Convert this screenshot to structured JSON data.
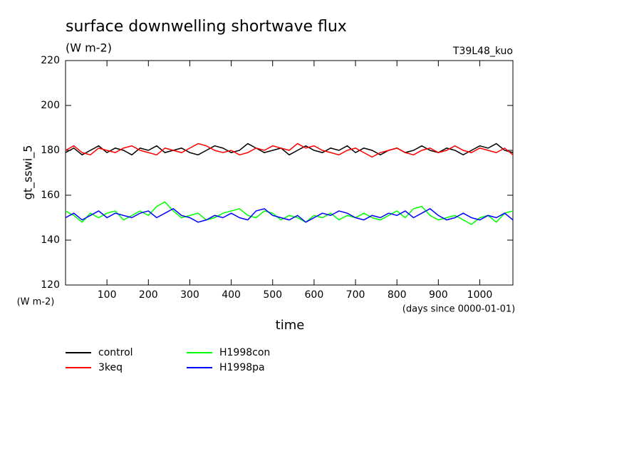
{
  "chart_data": {
    "type": "line",
    "title": "surface downwelling shortwave flux",
    "subtitle": "(W m-2)",
    "annotation": "T39L48_kuo",
    "y_label": "gt_sswi_5",
    "y_unit": "(W m-2)",
    "x_unit": "(days since 0000-01-01)",
    "x_label": "time",
    "x": [
      0,
      20,
      40,
      60,
      80,
      100,
      120,
      140,
      160,
      180,
      200,
      220,
      240,
      260,
      280,
      300,
      320,
      340,
      360,
      380,
      400,
      420,
      440,
      460,
      480,
      500,
      520,
      540,
      560,
      580,
      600,
      620,
      640,
      660,
      680,
      700,
      720,
      740,
      760,
      780,
      800,
      820,
      840,
      860,
      880,
      900,
      920,
      940,
      960,
      980,
      1000,
      1020,
      1040,
      1060,
      1080
    ],
    "xlim": [
      0,
      1080
    ],
    "xticks": [
      100,
      200,
      300,
      400,
      500,
      600,
      700,
      800,
      900,
      1000
    ],
    "ylim": [
      120,
      220
    ],
    "yticks": [
      120,
      140,
      160,
      180,
      200,
      220
    ],
    "series": [
      {
        "name": "control",
        "color": "#000000",
        "values": [
          179,
          181,
          178,
          180,
          182,
          179,
          181,
          180,
          178,
          181,
          180,
          182,
          179,
          180,
          181,
          179,
          178,
          180,
          182,
          181,
          179,
          180,
          183,
          181,
          179,
          180,
          181,
          178,
          180,
          182,
          180,
          179,
          181,
          180,
          182,
          179,
          181,
          180,
          178,
          180,
          181,
          179,
          180,
          182,
          180,
          179,
          181,
          180,
          178,
          180,
          182,
          181,
          183,
          180,
          179
        ]
      },
      {
        "name": "3keq",
        "color": "#ff0000",
        "values": [
          180,
          182,
          179,
          178,
          181,
          180,
          179,
          181,
          182,
          180,
          179,
          178,
          181,
          180,
          179,
          181,
          183,
          182,
          180,
          179,
          180,
          178,
          179,
          181,
          180,
          182,
          181,
          180,
          183,
          181,
          182,
          180,
          179,
          178,
          180,
          181,
          179,
          177,
          179,
          180,
          181,
          179,
          178,
          180,
          181,
          179,
          180,
          182,
          180,
          179,
          181,
          180,
          179,
          181,
          178
        ]
      },
      {
        "name": "H1998con",
        "color": "#00ff00",
        "values": [
          153,
          151,
          148,
          152,
          150,
          152,
          153,
          149,
          151,
          153,
          151,
          155,
          157,
          153,
          150,
          151,
          152,
          149,
          150,
          152,
          153,
          154,
          151,
          150,
          153,
          152,
          149,
          151,
          150,
          148,
          151,
          150,
          152,
          149,
          151,
          150,
          152,
          150,
          149,
          151,
          153,
          150,
          154,
          155,
          151,
          149,
          150,
          151,
          149,
          147,
          150,
          151,
          148,
          152,
          153
        ]
      },
      {
        "name": "H1998pa",
        "color": "#0000ff",
        "values": [
          150,
          152,
          149,
          151,
          153,
          150,
          152,
          151,
          150,
          152,
          153,
          150,
          152,
          154,
          151,
          150,
          148,
          149,
          151,
          150,
          152,
          150,
          149,
          153,
          154,
          151,
          150,
          149,
          151,
          148,
          150,
          152,
          151,
          153,
          152,
          150,
          149,
          151,
          150,
          152,
          151,
          153,
          150,
          152,
          154,
          151,
          149,
          150,
          152,
          150,
          149,
          151,
          150,
          152,
          149
        ]
      }
    ]
  }
}
